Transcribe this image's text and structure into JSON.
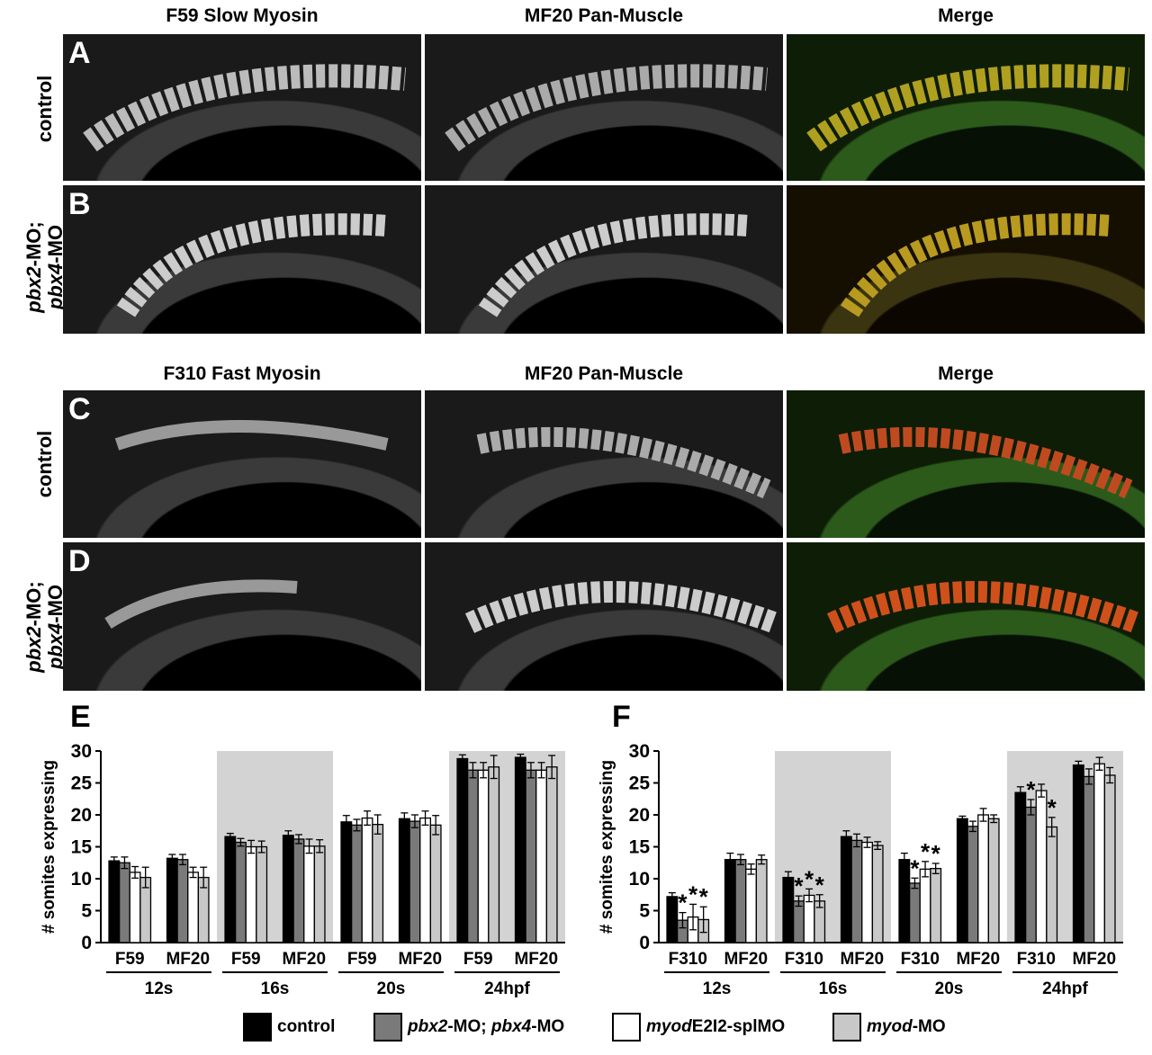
{
  "colors": {
    "control": "#000000",
    "pbx": "#7a7a7a",
    "myodE2I2": "#ffffff",
    "myodMO": "#c8c8c8",
    "shade": "#d3d3d3"
  },
  "top": {
    "col_titles": [
      "F59 Slow Myosin",
      "MF20 Pan-Muscle",
      "Merge"
    ],
    "row_letters": [
      "A",
      "B"
    ],
    "row_labels": [
      {
        "text": "control"
      },
      {
        "line1_gene": "pbx2",
        "line1_rest": "-MO;",
        "line2_gene": "pbx4",
        "line2_rest": "-MO"
      }
    ]
  },
  "middle": {
    "col_titles": [
      "F310 Fast Myosin",
      "MF20 Pan-Muscle",
      "Merge"
    ],
    "row_letters": [
      "C",
      "D"
    ],
    "row_labels": [
      {
        "text": "control"
      },
      {
        "line1_gene": "pbx2",
        "line1_rest": "-MO;",
        "line2_gene": "pbx4",
        "line2_rest": "-MO"
      }
    ]
  },
  "chart_data": [
    {
      "panel": "E",
      "type": "bar",
      "ylabel": "# somites expressing",
      "ylim": [
        0,
        30
      ],
      "yticks": [
        0,
        5,
        10,
        15,
        20,
        25,
        30
      ],
      "categories": [
        "F59",
        "MF20",
        "F59",
        "MF20",
        "F59",
        "MF20",
        "F59",
        "MF20"
      ],
      "groups": [
        "12s",
        "16s",
        "20s",
        "24hpf"
      ],
      "shaded_groups": [
        1,
        3
      ],
      "series": [
        {
          "name": "control",
          "values": [
            12.8,
            13.2,
            16.6,
            16.8,
            18.9,
            19.4,
            28.8,
            29.0
          ],
          "err": [
            0.6,
            0.6,
            0.5,
            0.7,
            1.0,
            0.9,
            0.6,
            0.5
          ]
        },
        {
          "name": "pbx2-MO; pbx4-MO",
          "values": [
            12.5,
            13.0,
            15.7,
            16.2,
            18.4,
            19.0,
            27.0,
            27.0
          ],
          "err": [
            0.9,
            0.8,
            0.6,
            0.7,
            0.9,
            1.0,
            1.2,
            1.2
          ]
        },
        {
          "name": "myodE2I2-splMO",
          "values": [
            11.0,
            11.0,
            15.0,
            15.1,
            19.5,
            19.5,
            27.0,
            27.0
          ],
          "err": [
            0.9,
            0.8,
            1.0,
            1.1,
            1.1,
            1.1,
            1.2,
            1.2
          ]
        },
        {
          "name": "myod-MO",
          "values": [
            10.2,
            10.2,
            15.0,
            15.1,
            18.5,
            18.4,
            27.5,
            27.5
          ],
          "err": [
            1.6,
            1.6,
            0.9,
            1.0,
            1.5,
            1.5,
            1.8,
            1.8
          ]
        }
      ],
      "asterisks": []
    },
    {
      "panel": "F",
      "type": "bar",
      "ylabel": "# somites expressing",
      "ylim": [
        0,
        30
      ],
      "yticks": [
        0,
        5,
        10,
        15,
        20,
        25,
        30
      ],
      "categories": [
        "F310",
        "MF20",
        "F310",
        "MF20",
        "F310",
        "MF20",
        "F310",
        "MF20"
      ],
      "groups": [
        "12s",
        "16s",
        "20s",
        "24hpf"
      ],
      "shaded_groups": [
        1,
        3
      ],
      "series": [
        {
          "name": "control",
          "values": [
            7.2,
            13.0,
            10.2,
            16.6,
            13.0,
            19.4,
            23.5,
            27.8
          ],
          "err": [
            0.6,
            1.0,
            0.9,
            0.9,
            1.0,
            0.4,
            0.9,
            0.6
          ]
        },
        {
          "name": "pbx2-MO; pbx4-MO",
          "values": [
            3.5,
            13.0,
            6.5,
            16.0,
            9.3,
            18.2,
            21.2,
            26.0
          ],
          "err": [
            1.2,
            0.8,
            0.8,
            1.0,
            0.8,
            0.8,
            1.2,
            1.2
          ]
        },
        {
          "name": "myodE2I2-splMO",
          "values": [
            4.0,
            11.5,
            7.4,
            15.7,
            11.5,
            20.0,
            23.8,
            28.0
          ],
          "err": [
            2.0,
            0.8,
            1.0,
            0.8,
            1.2,
            1.0,
            1.0,
            1.0
          ]
        },
        {
          "name": "myod-MO",
          "values": [
            3.6,
            13.0,
            6.5,
            15.2,
            11.6,
            19.4,
            18.1,
            26.2
          ],
          "err": [
            2.0,
            0.7,
            1.0,
            0.6,
            0.8,
            0.6,
            1.5,
            1.2
          ]
        }
      ],
      "asterisks": [
        [
          0,
          1
        ],
        [
          0,
          2
        ],
        [
          0,
          3
        ],
        [
          2,
          1
        ],
        [
          2,
          2
        ],
        [
          2,
          3
        ],
        [
          4,
          1
        ],
        [
          4,
          2
        ],
        [
          4,
          3
        ],
        [
          6,
          1
        ],
        [
          6,
          3
        ]
      ],
      "asterisk_text": "*"
    }
  ],
  "legend": [
    {
      "key": "control",
      "plain": "control",
      "italic_prefix": ""
    },
    {
      "key": "pbx",
      "italic_prefix": "pbx2",
      "plain": "-MO; ",
      "italic_2": "pbx4",
      "plain_2": "-MO"
    },
    {
      "key": "myodE2I2",
      "italic_prefix": "myod",
      "plain": "E2I2-splMO"
    },
    {
      "key": "myodMO",
      "italic_prefix": "myod",
      "plain": "-MO"
    }
  ]
}
